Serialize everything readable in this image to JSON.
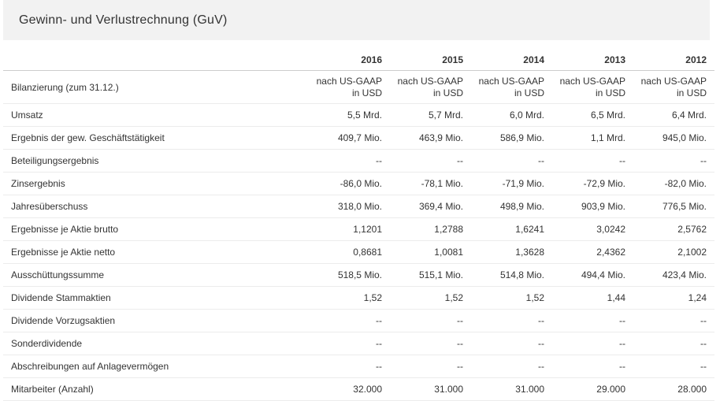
{
  "title": "Gewinn- und Verlustrechnung (GuV)",
  "years": [
    "2016",
    "2015",
    "2014",
    "2013",
    "2012"
  ],
  "bilanzierung": {
    "label": "Bilanzierung (zum 31.12.)",
    "line1": "nach US-GAAP",
    "line2": "in USD"
  },
  "rows": [
    {
      "label": "Umsatz",
      "values": [
        "5,5 Mrd.",
        "5,7 Mrd.",
        "6,0 Mrd.",
        "6,5 Mrd.",
        "6,4 Mrd."
      ]
    },
    {
      "label": "Ergebnis der gew. Geschäftstätigkeit",
      "values": [
        "409,7 Mio.",
        "463,9 Mio.",
        "586,9 Mio.",
        "1,1 Mrd.",
        "945,0 Mio."
      ]
    },
    {
      "label": "Beteiligungsergebnis",
      "values": [
        "--",
        "--",
        "--",
        "--",
        "--"
      ]
    },
    {
      "label": "Zinsergebnis",
      "values": [
        "-86,0 Mio.",
        "-78,1 Mio.",
        "-71,9 Mio.",
        "-72,9 Mio.",
        "-82,0 Mio."
      ]
    },
    {
      "label": "Jahresüberschuss",
      "values": [
        "318,0 Mio.",
        "369,4 Mio.",
        "498,9 Mio.",
        "903,9 Mio.",
        "776,5 Mio."
      ]
    },
    {
      "label": "Ergebnisse je Aktie brutto",
      "values": [
        "1,1201",
        "1,2788",
        "1,6241",
        "3,0242",
        "2,5762"
      ]
    },
    {
      "label": "Ergebnisse je Aktie netto",
      "values": [
        "0,8681",
        "1,0081",
        "1,3628",
        "2,4362",
        "2,1002"
      ]
    },
    {
      "label": "Ausschüttungssumme",
      "values": [
        "518,5 Mio.",
        "515,1 Mio.",
        "514,8 Mio.",
        "494,4 Mio.",
        "423,4 Mio."
      ]
    },
    {
      "label": "Dividende Stammaktien",
      "values": [
        "1,52",
        "1,52",
        "1,52",
        "1,44",
        "1,24"
      ]
    },
    {
      "label": "Dividende Vorzugsaktien",
      "values": [
        "--",
        "--",
        "--",
        "--",
        "--"
      ]
    },
    {
      "label": "Sonderdividende",
      "values": [
        "--",
        "--",
        "--",
        "--",
        "--"
      ]
    },
    {
      "label": "Abschreibungen auf Anlagevermögen",
      "values": [
        "--",
        "--",
        "--",
        "--",
        "--"
      ]
    },
    {
      "label": "Mitarbeiter (Anzahl)",
      "values": [
        "32.000",
        "31.000",
        "31.000",
        "29.000",
        "28.000"
      ]
    }
  ]
}
